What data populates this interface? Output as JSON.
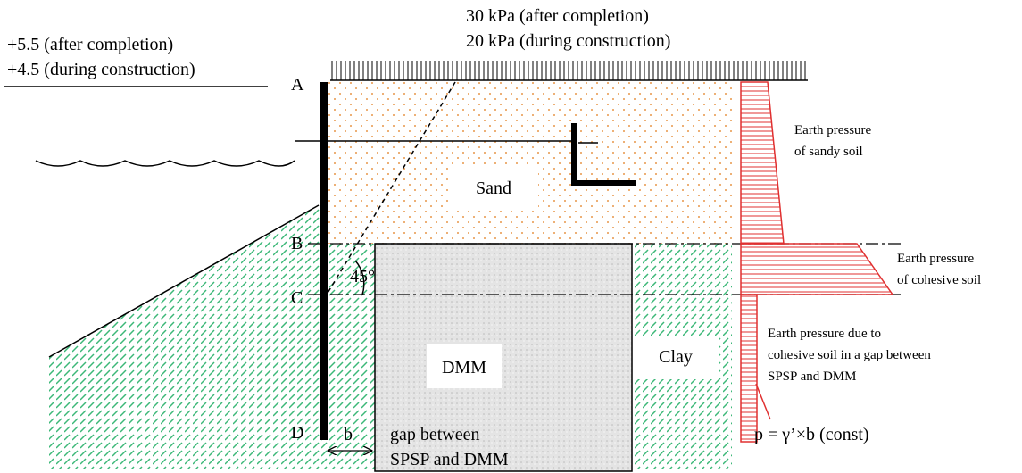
{
  "loads": {
    "after": "30 kPa (after completion)",
    "during": "20 kPa (during construction)"
  },
  "levels": {
    "after": "+5.5 (after completion)",
    "during": "+4.5 (during construction)"
  },
  "points": [
    "A",
    "B",
    "C",
    "D"
  ],
  "soils": {
    "sand": "Sand",
    "dmm": "DMM",
    "clay": "Clay"
  },
  "angle": "45°",
  "gap": {
    "symbol": "b",
    "lines": [
      "gap between",
      "SPSP and DMM"
    ]
  },
  "pressure_labels": [
    {
      "lines": [
        "Earth pressure",
        "of sandy soil"
      ]
    },
    {
      "lines": [
        "Earth pressure",
        "of cohesive soil"
      ]
    },
    {
      "lines": [
        "Earth pressure due to",
        "cohesive soil in a gap between",
        "SPSP and DMM"
      ]
    }
  ],
  "formula": "p = γ’×b (const)"
}
